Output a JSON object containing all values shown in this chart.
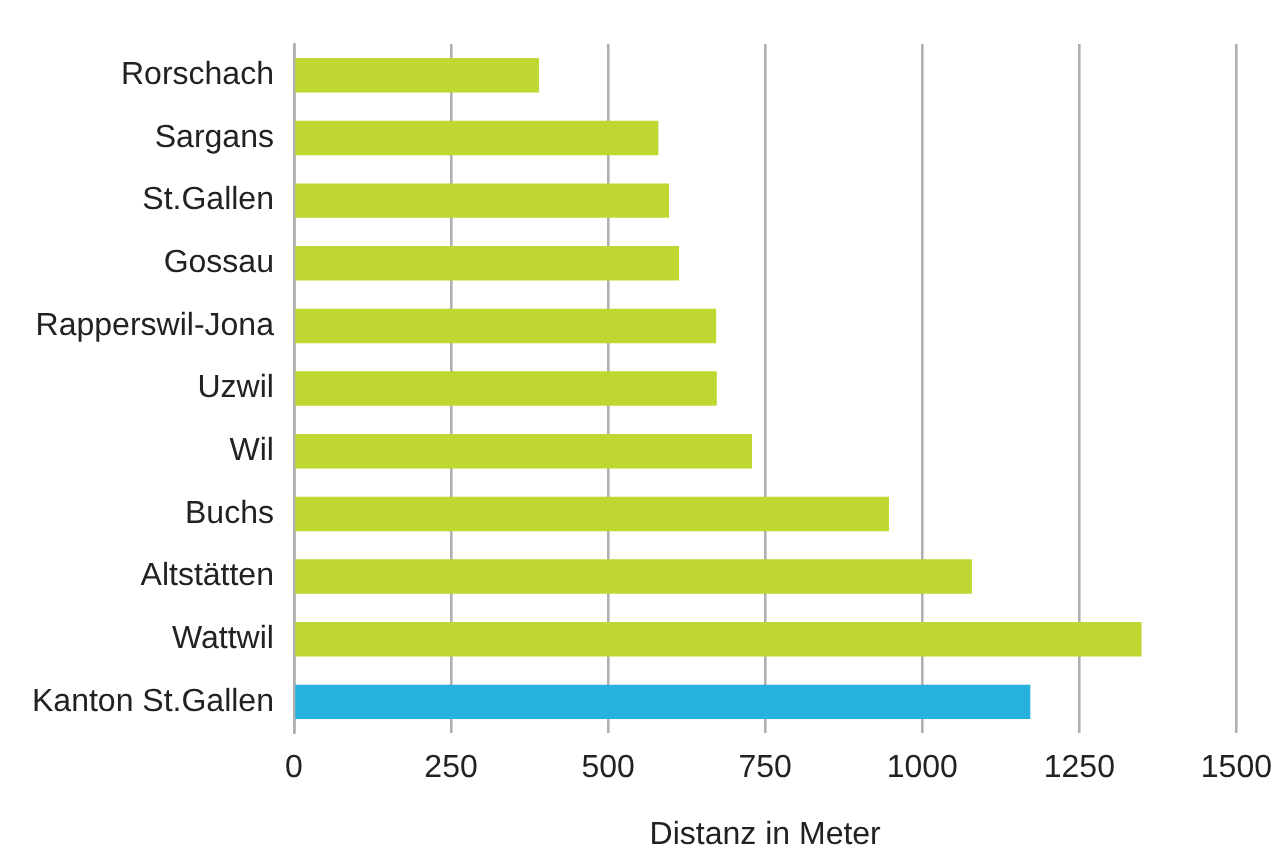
{
  "chart_data": {
    "type": "bar",
    "orientation": "horizontal",
    "xlabel": "Distanz in Meter",
    "categories": [
      "Rorschach",
      "Sargans",
      "St.Gallen",
      "Gossau",
      "Rapperswil-Jona",
      "Uzwil",
      "Wil",
      "Buchs",
      "Altstätten",
      "Wattwil",
      "Kanton St.Gallen"
    ],
    "values": [
      390,
      580,
      597,
      613,
      672,
      673,
      729,
      947,
      1079,
      1349,
      1172
    ],
    "colors": [
      "#bfd730",
      "#bfd730",
      "#bfd730",
      "#bfd730",
      "#bfd730",
      "#bfd730",
      "#bfd730",
      "#bfd730",
      "#bfd730",
      "#bfd730",
      "#27b1de"
    ],
    "xlim": [
      0,
      1500
    ],
    "xticks": [
      0,
      250,
      500,
      750,
      1000,
      1250,
      1500
    ],
    "grid": "x",
    "legend": false
  }
}
